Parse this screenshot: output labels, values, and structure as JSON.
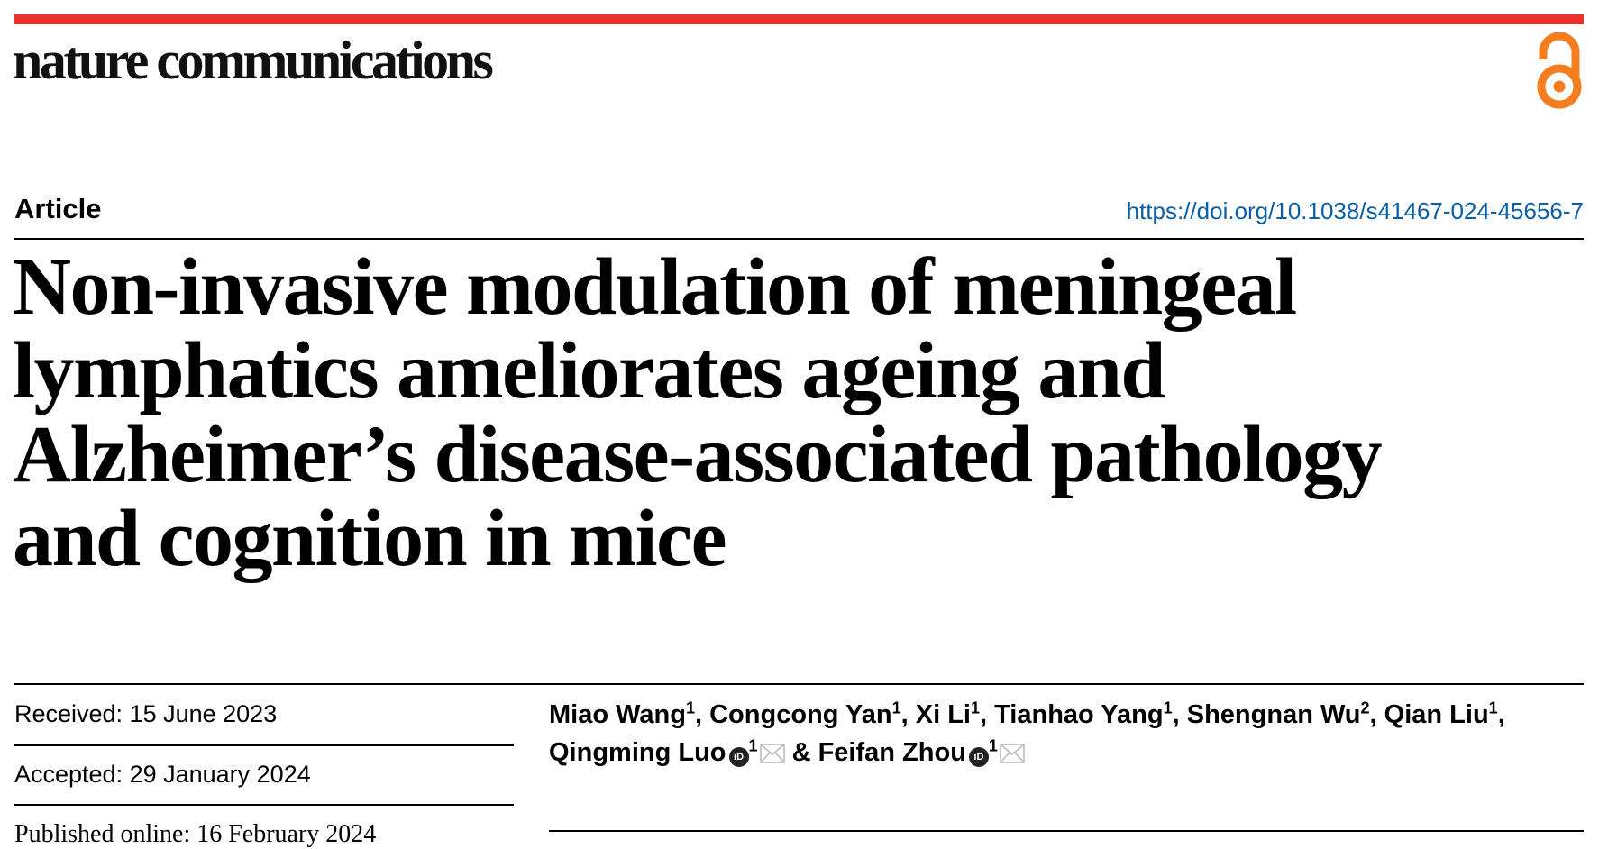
{
  "header": {
    "journal": "nature communications",
    "brand_color": "#e8302d",
    "open_access_icon": "open-access-lock-icon",
    "open_access_color": "#f47d20"
  },
  "article": {
    "type": "Article",
    "doi": "https://doi.org/10.1038/s41467-024-45656-7",
    "title_lines": [
      "Non-invasive modulation of meningeal",
      "lymphatics ameliorates ageing and",
      "Alzheimer’s disease-associated pathology",
      "and cognition in mice"
    ]
  },
  "dates": {
    "received": "Received: 15 June 2023",
    "accepted": "Accepted: 29 January 2024",
    "published": "Published online: 16 February 2024"
  },
  "authors": [
    {
      "name": "Miao Wang",
      "aff": "1",
      "sep": ", "
    },
    {
      "name": "Congcong Yan",
      "aff": "1",
      "sep": ", "
    },
    {
      "name": "Xi Li",
      "aff": "1",
      "sep": ", "
    },
    {
      "name": "Tianhao Yang",
      "aff": "1",
      "sep": ", "
    },
    {
      "name": "Shengnan Wu",
      "aff": "2",
      "sep": ", "
    },
    {
      "name": "Qian Liu",
      "aff": "1",
      "sep": ","
    },
    {
      "name": "Qingming Luo",
      "aff": "1",
      "orcid": "iD",
      "corresponding": true,
      "sep": " & "
    },
    {
      "name": "Feifan Zhou",
      "aff": "1",
      "orcid": "iD",
      "corresponding": true,
      "sep": ""
    }
  ]
}
